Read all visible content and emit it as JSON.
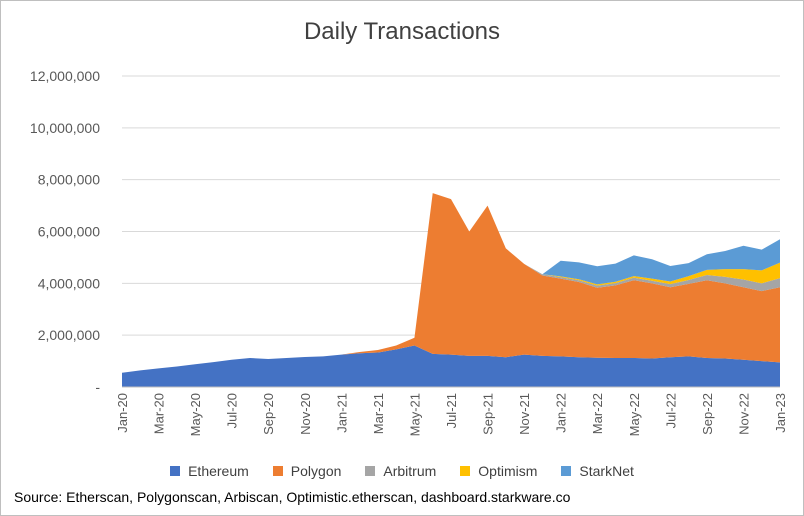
{
  "chart_data": {
    "type": "area",
    "stacked": true,
    "title": "Daily Transactions",
    "xlabel": "",
    "ylabel": "",
    "ylim": [
      0,
      12000000
    ],
    "y_ticks": [
      0,
      2000000,
      4000000,
      6000000,
      8000000,
      10000000,
      12000000
    ],
    "y_tick_labels": [
      "-",
      "2,000,000",
      "4,000,000",
      "6,000,000",
      "8,000,000",
      "10,000,000",
      "12,000,000"
    ],
    "x_tick_labels": [
      "Jan-20",
      "Mar-20",
      "May-20",
      "Jul-20",
      "Sep-20",
      "Nov-20",
      "Jan-21",
      "Mar-21",
      "May-21",
      "Jul-21",
      "Sep-21",
      "Nov-21",
      "Jan-22",
      "Mar-22",
      "May-22",
      "Jul-22",
      "Sep-22",
      "Nov-22",
      "Jan-23"
    ],
    "grid": "horizontal",
    "legend_position": "bottom",
    "x": [
      "Jan-20",
      "Feb-20",
      "Mar-20",
      "Apr-20",
      "May-20",
      "Jun-20",
      "Jul-20",
      "Aug-20",
      "Sep-20",
      "Oct-20",
      "Nov-20",
      "Dec-20",
      "Jan-21",
      "Feb-21",
      "Mar-21",
      "Apr-21",
      "May-21",
      "Jun-21",
      "Jul-21",
      "Aug-21",
      "Sep-21",
      "Oct-21",
      "Nov-21",
      "Dec-21",
      "Jan-22",
      "Feb-22",
      "Mar-22",
      "Apr-22",
      "May-22",
      "Jun-22",
      "Jul-22",
      "Aug-22",
      "Sep-22",
      "Oct-22",
      "Nov-22",
      "Dec-22",
      "Jan-23"
    ],
    "series": [
      {
        "name": "Ethereum",
        "color": "#4472C4",
        "values": [
          550000,
          640000,
          720000,
          790000,
          880000,
          960000,
          1050000,
          1120000,
          1080000,
          1120000,
          1160000,
          1180000,
          1250000,
          1300000,
          1330000,
          1450000,
          1600000,
          1280000,
          1250000,
          1200000,
          1200000,
          1150000,
          1250000,
          1200000,
          1180000,
          1150000,
          1130000,
          1120000,
          1120000,
          1100000,
          1150000,
          1180000,
          1120000,
          1100000,
          1050000,
          1000000,
          950000
        ]
      },
      {
        "name": "Polygon",
        "color": "#ED7D31",
        "values": [
          0,
          0,
          0,
          0,
          0,
          0,
          0,
          0,
          0,
          0,
          0,
          0,
          0,
          50000,
          100000,
          150000,
          300000,
          6200000,
          6000000,
          4800000,
          5800000,
          4200000,
          3500000,
          3100000,
          3000000,
          2900000,
          2700000,
          2800000,
          3000000,
          2900000,
          2700000,
          2800000,
          3000000,
          2900000,
          2800000,
          2700000,
          2900000
        ]
      },
      {
        "name": "Arbitrum",
        "color": "#A5A5A5",
        "values": [
          0,
          0,
          0,
          0,
          0,
          0,
          0,
          0,
          0,
          0,
          0,
          0,
          0,
          0,
          0,
          0,
          0,
          0,
          0,
          0,
          0,
          0,
          0,
          50000,
          60000,
          70000,
          80000,
          90000,
          100000,
          100000,
          120000,
          150000,
          200000,
          250000,
          300000,
          300000,
          350000
        ]
      },
      {
        "name": "Optimism",
        "color": "#FFC000",
        "values": [
          0,
          0,
          0,
          0,
          0,
          0,
          0,
          0,
          0,
          0,
          0,
          0,
          0,
          0,
          0,
          0,
          0,
          0,
          0,
          0,
          0,
          0,
          0,
          0,
          30000,
          40000,
          50000,
          50000,
          60000,
          80000,
          100000,
          150000,
          200000,
          300000,
          400000,
          500000,
          600000
        ]
      },
      {
        "name": "StarkNet",
        "color": "#5B9BD5",
        "values": [
          0,
          0,
          0,
          0,
          0,
          0,
          0,
          0,
          0,
          0,
          0,
          0,
          0,
          0,
          0,
          0,
          0,
          0,
          0,
          0,
          0,
          0,
          0,
          0,
          600000,
          650000,
          700000,
          700000,
          800000,
          750000,
          600000,
          500000,
          600000,
          700000,
          900000,
          800000,
          900000
        ]
      }
    ]
  },
  "source_text": "Source: Etherscan, Polygonscan, Arbiscan, Optimistic.etherscan, dashboard.starkware.co"
}
